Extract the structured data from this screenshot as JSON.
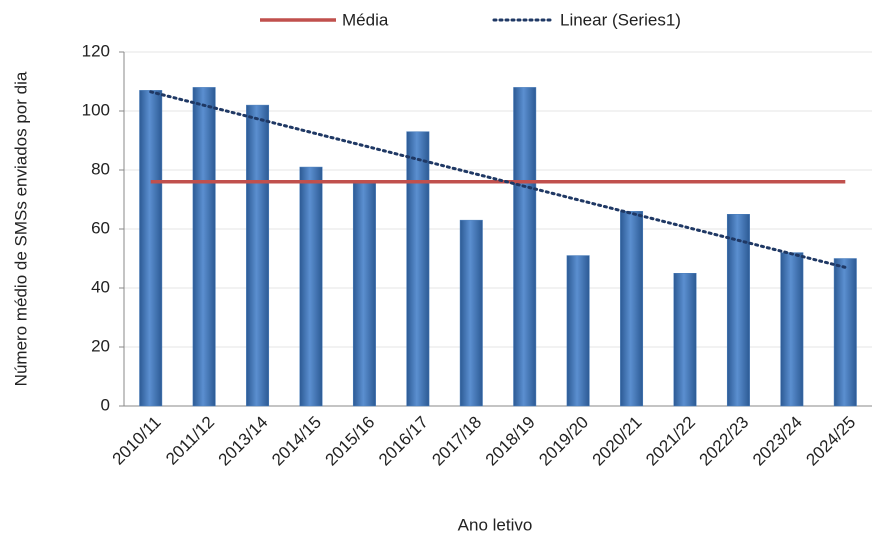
{
  "chart_data": {
    "type": "bar",
    "y_label": "Número médio de SMSs enviados por dia",
    "x_label": "Ano letivo",
    "categories": [
      "2010/11",
      "2011/12",
      "2013/14",
      "2014/15",
      "2015/16",
      "2016/17",
      "2017/18",
      "2018/19",
      "2019/20",
      "2020/21",
      "2021/22",
      "2022/23",
      "2023/24",
      "2024/25"
    ],
    "values": [
      107,
      108,
      102,
      81,
      76,
      93,
      63,
      108,
      51,
      66,
      45,
      65,
      52,
      50
    ],
    "color": "#4a7ebb",
    "mean": {
      "name": "Média",
      "value": 76,
      "color": "#c0504d"
    },
    "trend": {
      "name": "Linear (Series1)",
      "start": 106.5,
      "end": 47,
      "color": "#1f3864"
    },
    "ylim": [
      0,
      120
    ],
    "yticks": [
      0,
      20,
      40,
      60,
      80,
      100,
      120
    ],
    "grid": true
  }
}
